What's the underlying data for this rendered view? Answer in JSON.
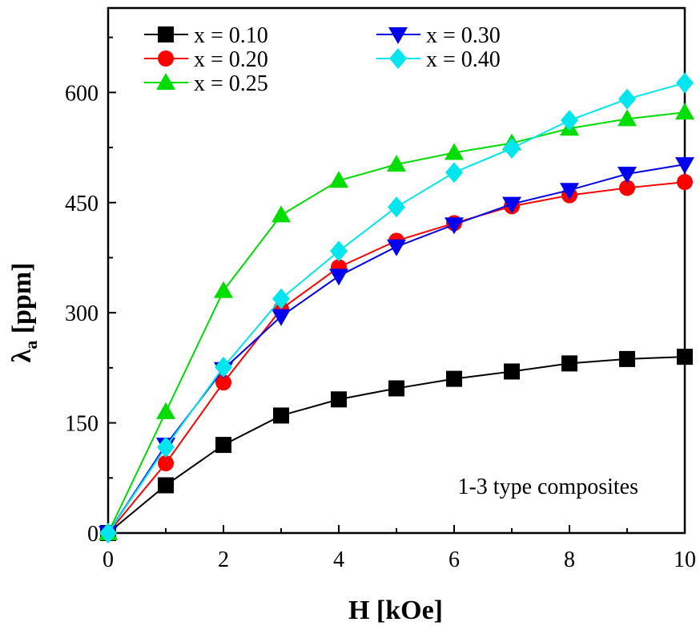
{
  "chart_data": {
    "type": "line",
    "title": "",
    "xlabel": "H [kOe]",
    "ylabel_main": "λ",
    "ylabel_sub": "a",
    "ylabel_unit": " [ppm]",
    "xlim": [
      0,
      10
    ],
    "ylim": [
      0,
      715
    ],
    "xticks": [
      0,
      2,
      4,
      6,
      8,
      10
    ],
    "yticks": [
      0,
      150,
      300,
      450,
      600
    ],
    "grid": false,
    "legend_placement": "top-left",
    "annotation": "1-3 type composites",
    "x": [
      0,
      1,
      2,
      3,
      4,
      5,
      6,
      7,
      8,
      9,
      10
    ],
    "series": [
      {
        "name": "x = 0.10",
        "color": "#000000",
        "marker": "square",
        "values": [
          0,
          65,
          120,
          160,
          182,
          197,
          210,
          220,
          231,
          237,
          240
        ]
      },
      {
        "name": "x = 0.20",
        "color": "#ff0000",
        "marker": "circle",
        "values": [
          0,
          95,
          205,
          305,
          362,
          398,
          422,
          445,
          460,
          470,
          478
        ]
      },
      {
        "name": "x = 0.25",
        "color": "#00dd00",
        "marker": "triangle-up",
        "values": [
          0,
          165,
          330,
          433,
          480,
          502,
          518,
          531,
          551,
          564,
          573
        ]
      },
      {
        "name": "x = 0.30",
        "color": "#0000ee",
        "marker": "triangle-down",
        "values": [
          0,
          120,
          223,
          295,
          350,
          390,
          420,
          448,
          467,
          489,
          502
        ]
      },
      {
        "name": "x = 0.40",
        "color": "#00e5ee",
        "marker": "diamond",
        "values": [
          0,
          117,
          226,
          319,
          384,
          444,
          491,
          524,
          562,
          591,
          613
        ]
      }
    ]
  }
}
